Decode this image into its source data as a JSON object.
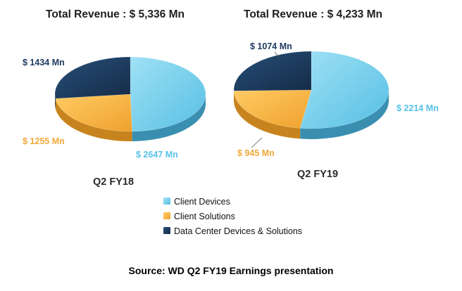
{
  "chart_data": [
    {
      "type": "pie",
      "title": "Total Revenue : $ 5,336 Mn",
      "period": "Q2 FY18",
      "slices": [
        {
          "category": "Client Devices",
          "value": 2647,
          "label": "$ 2647 Mn"
        },
        {
          "category": "Client Solutions",
          "value": 1255,
          "label": "$ 1255 Mn"
        },
        {
          "category": "Data Center Devices & Solutions",
          "value": 1434,
          "label": "$ 1434 Mn"
        }
      ]
    },
    {
      "type": "pie",
      "title": "Total Revenue : $ 4,233 Mn",
      "period": "Q2 FY19",
      "slices": [
        {
          "category": "Client Devices",
          "value": 2214,
          "label": "$ 2214 Mn"
        },
        {
          "category": "Client Solutions",
          "value": 945,
          "label": "$ 945 Mn"
        },
        {
          "category": "Data Center Devices & Solutions",
          "value": 1074,
          "label": "$ 1074 Mn"
        }
      ]
    }
  ],
  "legend": {
    "placement": "bottom-center",
    "items": [
      {
        "label": "Client Devices",
        "color": "#6FCDEB"
      },
      {
        "label": "Client Solutions",
        "color": "#F5B13C"
      },
      {
        "label": "Data Center Devices & Solutions",
        "color": "#1C3859"
      }
    ]
  },
  "source": "Source: WD Q2 FY19 Earnings presentation",
  "colors": {
    "client_devices": "#6FCDEB",
    "client_solutions": "#F5B13C",
    "data_center": "#1C3859",
    "label_client_devices": "#57C3E8",
    "label_client_solutions": "#F1A93A",
    "label_data_center": "#1E3A5F"
  }
}
